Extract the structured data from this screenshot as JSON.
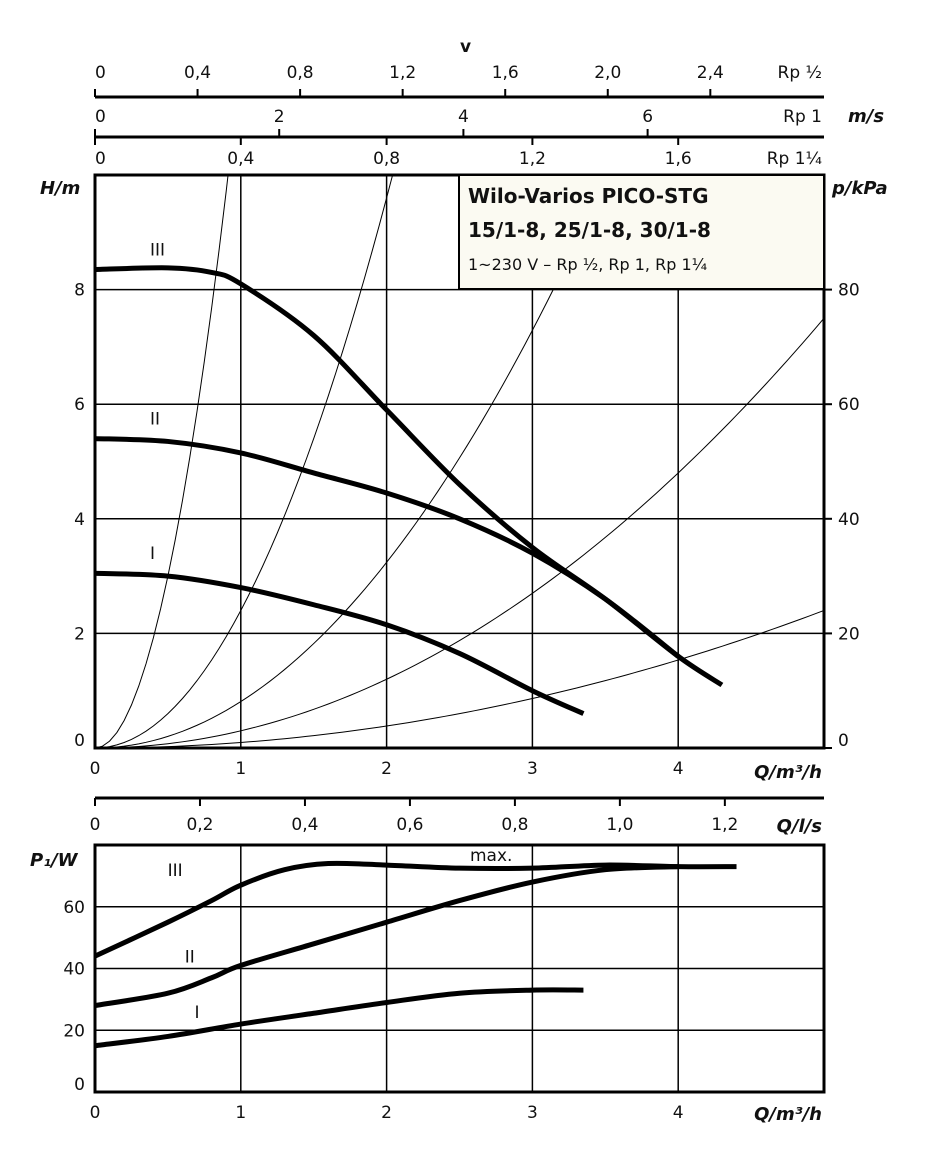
{
  "chart_data": [
    {
      "type": "line",
      "title": "Wilo-Varios PICO-STG",
      "subtitle": "15/1-8, 25/1-8, 30/1-8",
      "note": "1~230 V – Rp ½, Rp 1, Rp 1¼",
      "xlabel": "Q/m³/h",
      "ylabel": "H/m",
      "y2label": "p/kPa",
      "xlim": [
        0,
        5
      ],
      "ylim": [
        0,
        10
      ],
      "y2lim": [
        0,
        100
      ],
      "xticks": [
        0,
        1,
        2,
        3,
        4
      ],
      "yticks": [
        0,
        2,
        4,
        6,
        8
      ],
      "y2ticks": [
        0,
        20,
        40,
        60,
        80
      ],
      "grid": true,
      "velocity_axes": {
        "label": "v",
        "unit": "m/s",
        "rp_half": {
          "name": "Rp ½",
          "ticks": [
            "0",
            "0,4",
            "0,8",
            "1,2",
            "1,6",
            "2,0",
            "2,4"
          ],
          "values": [
            0,
            0.4,
            0.8,
            1.2,
            1.6,
            2.0,
            2.4
          ],
          "max": 2.82
        },
        "rp_1": {
          "name": "Rp 1",
          "ticks": [
            "0",
            "2",
            "4",
            "6"
          ],
          "values": [
            0,
            2,
            4,
            6
          ],
          "max": 7.85
        },
        "rp_1_1_4": {
          "name": "Rp 1¼",
          "ticks": [
            "0",
            "0,4",
            "0,8",
            "1,2",
            "1,6"
          ],
          "values": [
            0,
            0.4,
            0.8,
            1.2,
            1.6
          ],
          "max": 2.0
        }
      },
      "series": [
        {
          "name": "III",
          "x": [
            0,
            0.5,
            0.8,
            1,
            1.5,
            2,
            2.5,
            3,
            3.5,
            4,
            4.3
          ],
          "y": [
            8.35,
            8.38,
            8.3,
            8.1,
            7.2,
            5.9,
            4.6,
            3.5,
            2.6,
            1.6,
            1.1
          ]
        },
        {
          "name": "II",
          "x": [
            0,
            0.5,
            1,
            1.5,
            2,
            2.5,
            3,
            3.5,
            4
          ],
          "y": [
            5.4,
            5.35,
            5.15,
            4.8,
            4.45,
            4.0,
            3.4,
            2.6,
            1.6
          ]
        },
        {
          "name": "I",
          "x": [
            0,
            0.5,
            1,
            1.5,
            2,
            2.5,
            3,
            3.35
          ],
          "y": [
            3.05,
            3.0,
            2.8,
            2.5,
            2.15,
            1.65,
            1.0,
            0.6
          ]
        }
      ],
      "system_curves_k": [
        12,
        2.4,
        0.81,
        0.3,
        0.096
      ]
    },
    {
      "type": "line",
      "xlabel": "Q/m³/h",
      "ylabel": "P₁/W",
      "x2label": "Q/l/s",
      "xlim": [
        0,
        5
      ],
      "ylim": [
        0,
        80
      ],
      "xticks": [
        0,
        1,
        2,
        3,
        4
      ],
      "yticks": [
        0,
        20,
        40,
        60
      ],
      "x2ticks": [
        "0",
        "0,2",
        "0,4",
        "0,6",
        "0,8",
        "1,0",
        "1,2"
      ],
      "x2values": [
        0,
        0.2,
        0.4,
        0.6,
        0.8,
        1.0,
        1.2
      ],
      "grid": true,
      "annotation": "max.",
      "series": [
        {
          "name": "III",
          "x": [
            0,
            0.5,
            0.8,
            1,
            1.3,
            1.6,
            2,
            2.5,
            3,
            3.5,
            4,
            4.4
          ],
          "y": [
            44,
            55,
            62,
            67,
            72,
            74,
            73.5,
            72.5,
            72.5,
            73.5,
            73,
            73
          ]
        },
        {
          "name": "II",
          "x": [
            0,
            0.5,
            0.8,
            1,
            1.5,
            2,
            2.5,
            3,
            3.5,
            4
          ],
          "y": [
            28,
            32,
            37,
            41,
            48,
            55,
            62,
            68,
            72,
            73
          ]
        },
        {
          "name": "I",
          "x": [
            0,
            0.5,
            1,
            1.5,
            2,
            2.5,
            3,
            3.35
          ],
          "y": [
            15,
            18,
            22,
            25.5,
            29,
            32,
            33,
            33
          ]
        }
      ]
    }
  ]
}
